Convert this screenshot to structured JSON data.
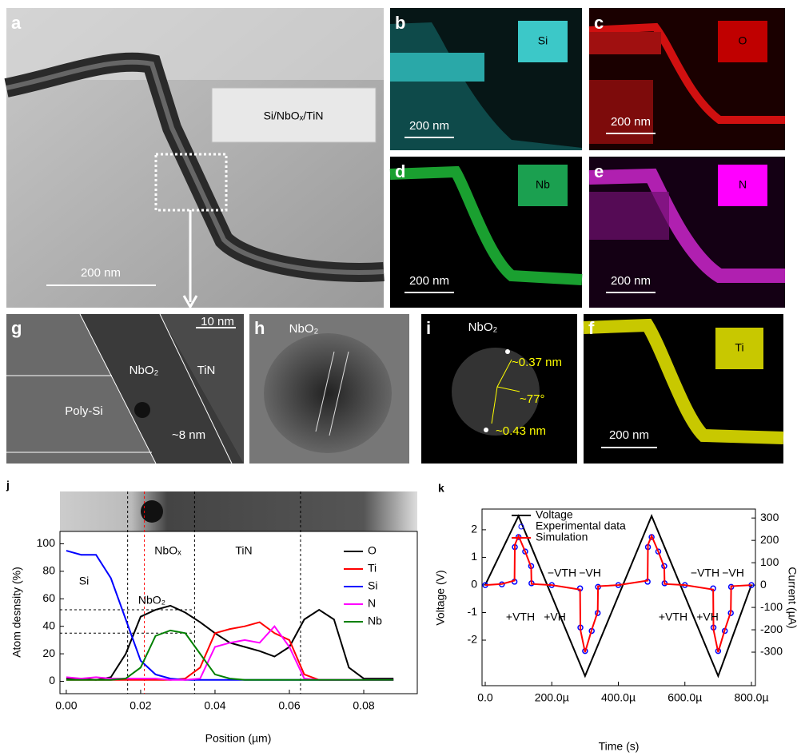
{
  "panels": [
    {
      "label": "a",
      "texts": [
        "Si/NbOₓ/TiN",
        "200 nm"
      ]
    },
    {
      "label": "b",
      "texts": [
        "Si",
        "200 nm"
      ]
    },
    {
      "label": "c",
      "texts": [
        "O",
        "200 nm"
      ]
    },
    {
      "label": "d",
      "texts": [
        "Nb",
        "200 nm"
      ]
    },
    {
      "label": "e",
      "texts": [
        "N",
        "200 nm"
      ]
    },
    {
      "label": "g",
      "texts": [
        "10 nm",
        "NbO₂",
        "TiN",
        "Poly-Si",
        "~8 nm"
      ]
    },
    {
      "label": "h",
      "texts": [
        "NbO₂"
      ]
    },
    {
      "label": "i",
      "texts": [
        "NbO₂",
        "~0.37 nm",
        "~77°",
        "~0.43 nm"
      ]
    },
    {
      "label": "f",
      "texts": [
        "Ti",
        "200 nm"
      ]
    }
  ],
  "chart_data": [
    {
      "type": "line",
      "label": "j",
      "x_label": "Position (µm)",
      "y_label": "Atom desnsity (%)",
      "x": [
        0,
        0.004,
        0.008,
        0.012,
        0.016,
        0.02,
        0.024,
        0.028,
        0.032,
        0.036,
        0.04,
        0.044,
        0.048,
        0.052,
        0.056,
        0.06,
        0.064,
        0.068,
        0.072,
        0.076,
        0.08,
        0.084,
        0.088
      ],
      "series": [
        {
          "name": "O",
          "color": "#000000",
          "values": [
            2,
            2,
            1,
            3,
            20,
            47,
            52,
            55,
            50,
            43,
            35,
            28,
            25,
            22,
            18,
            25,
            45,
            52,
            45,
            10,
            2,
            2,
            2
          ]
        },
        {
          "name": "Ti",
          "color": "#ff0000",
          "values": [
            1,
            1,
            1,
            1,
            1,
            1,
            1,
            1,
            2,
            10,
            35,
            38,
            40,
            43,
            35,
            30,
            5,
            1,
            1,
            1,
            1,
            1,
            1
          ]
        },
        {
          "name": "Si",
          "color": "#0000ff",
          "values": [
            95,
            92,
            92,
            75,
            45,
            15,
            5,
            2,
            1,
            1,
            1,
            1,
            1,
            1,
            1,
            1,
            1,
            1,
            1,
            1,
            1,
            1,
            1
          ]
        },
        {
          "name": "N",
          "color": "#ff00ff",
          "values": [
            3,
            2,
            3,
            2,
            2,
            2,
            2,
            1,
            1,
            2,
            25,
            28,
            30,
            28,
            40,
            25,
            2,
            1,
            1,
            1,
            1,
            1,
            1
          ]
        },
        {
          "name": "Nb",
          "color": "#008000",
          "values": [
            1,
            1,
            1,
            1,
            2,
            10,
            33,
            37,
            35,
            20,
            5,
            2,
            1,
            1,
            1,
            1,
            1,
            1,
            1,
            1,
            1,
            1,
            1
          ]
        }
      ],
      "xlim": [
        -0.0017,
        0.0944
      ],
      "xticks": [
        {
          "value": 0,
          "label": "0.00"
        },
        {
          "value": 0.02,
          "label": "0.02"
        },
        {
          "value": 0.04,
          "label": "0.04"
        },
        {
          "value": 0.06,
          "label": "0.06"
        },
        {
          "value": 0.08,
          "label": "0.08"
        }
      ],
      "ylim": [
        -9,
        109
      ],
      "yticks": [
        0,
        20,
        40,
        60,
        80,
        100
      ],
      "reference_x": [
        0.0165,
        0.021,
        0.0345,
        0.063
      ],
      "reference_y": [
        52,
        35
      ],
      "annotations": [
        "Si",
        "NbO₂",
        "NbOₓ",
        "TiN"
      ],
      "legend": "upper right"
    },
    {
      "type": "line",
      "label": "k",
      "x_label": "Time (s)",
      "y_label": "Voltage (V)",
      "y2_label": "Current (µA)",
      "x": [
        0,
        5e-05,
        8.8e-05,
        8.9e-05,
        0.0001,
        0.00012,
        0.000138,
        0.000139,
        0.0002,
        0.000285,
        0.000286,
        0.0003,
        0.00032,
        0.000338,
        0.000339,
        0.0004,
        0.000488,
        0.000489,
        0.0005,
        0.00052,
        0.000538,
        0.000539,
        0.0006,
        0.000685,
        0.000686,
        0.0007,
        0.00072,
        0.000738,
        0.000739,
        0.0008
      ],
      "series": [
        {
          "name": "Voltage",
          "color": "#000000",
          "values": [
            0,
            1.25,
            2.2,
            2.225,
            2.5,
            1.92,
            1.398,
            1.369,
            -0.4,
            -2.865,
            -2.894,
            -3.3,
            -2.72,
            -2.198,
            -2.169,
            -0.4,
            2.152,
            2.181,
            2.5,
            1.92,
            1.398,
            1.369,
            -0.4,
            -2.865,
            -2.894,
            -3.3,
            -2.64,
            -2.046,
            -2.013,
            0
          ]
        },
        {
          "name": "Experimental data",
          "color": "#0000ff",
          "mode": "markers",
          "axis": "y2",
          "values": [
            0,
            3,
            15,
            170,
            215,
            150,
            85,
            8,
            0,
            -15,
            -190,
            -295,
            -205,
            -125,
            -8,
            0,
            15,
            170,
            215,
            150,
            85,
            8,
            0,
            -15,
            -190,
            -295,
            -205,
            -125,
            -8,
            0
          ]
        },
        {
          "name": "Simulation",
          "color": "#ff0000",
          "axis": "y2",
          "values": [
            0,
            5,
            20,
            180,
            220,
            150,
            80,
            5,
            0,
            -20,
            -200,
            -300,
            -200,
            -120,
            -5,
            0,
            20,
            180,
            220,
            150,
            80,
            5,
            0,
            -20,
            -200,
            -300,
            -200,
            -120,
            -5,
            0
          ]
        }
      ],
      "xlim": [
        -9.6e-06,
        0.000812
      ],
      "xticks": [
        {
          "value": 0,
          "label": "0.0"
        },
        {
          "value": 0.0002,
          "label": "200.0µ"
        },
        {
          "value": 0.0004,
          "label": "400.0µ"
        },
        {
          "value": 0.0006,
          "label": "600.0µ"
        },
        {
          "value": 0.0008,
          "label": "800.0µ"
        }
      ],
      "ylim": [
        -3.65,
        2.75
      ],
      "yticks": [
        -2,
        -1,
        0,
        1,
        2
      ],
      "y2lim": [
        -450,
        340
      ],
      "y2ticks": [
        -300,
        -200,
        -100,
        0,
        100,
        200,
        300
      ],
      "annotations": [
        "+VTH",
        "+VH",
        "−VTH",
        "−VH",
        "+VTH",
        "+VH",
        "−VTH",
        "−VH"
      ],
      "legend": "upper left"
    }
  ]
}
